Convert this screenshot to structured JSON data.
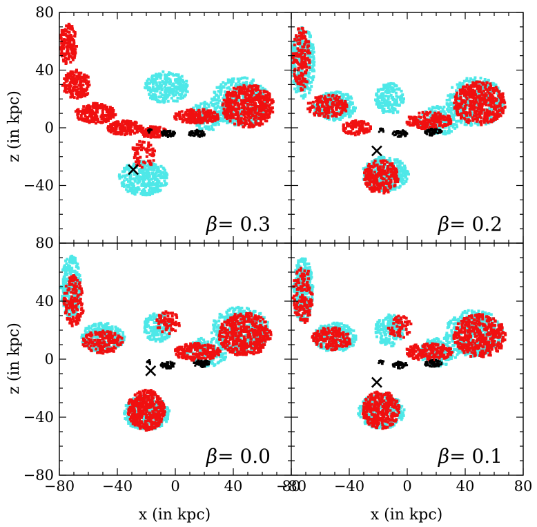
{
  "chart_data": {
    "type": "scatter",
    "layout": "2x2 shared axes",
    "xlabel": "x (in kpc)",
    "ylabel": "z (in kpc)",
    "xlim": [
      -80,
      80
    ],
    "ylim": [
      -80,
      80
    ],
    "x_ticks": [
      -80,
      -40,
      0,
      40,
      80
    ],
    "y_ticks": [
      -80,
      -40,
      0,
      40,
      80
    ],
    "colors": {
      "cyan": "#4ee8e8",
      "red": "#f01010",
      "black": "#000000"
    },
    "panels": [
      {
        "position": "top-left",
        "label_greek": "β",
        "label_rest": "=  0.3",
        "marker": {
          "symbol": "×",
          "x": -29,
          "y": -29
        },
        "series": [
          {
            "name": "cyan particles",
            "color": "cyan",
            "regions": [
              {
                "cx": -6,
                "cy": 28,
                "rx": 15,
                "ry": 11,
                "n": 260
              },
              {
                "cx": -22,
                "cy": -35,
                "rx": 17,
                "ry": 12,
                "n": 320
              },
              {
                "cx": 45,
                "cy": 18,
                "rx": 20,
                "ry": 17,
                "n": 380
              },
              {
                "cx": 22,
                "cy": 8,
                "rx": 12,
                "ry": 10,
                "n": 120
              }
            ]
          },
          {
            "name": "red particles",
            "color": "red",
            "regions": [
              {
                "cx": -74,
                "cy": 58,
                "rx": 6,
                "ry": 14,
                "n": 150
              },
              {
                "cx": -68,
                "cy": 30,
                "rx": 10,
                "ry": 10,
                "n": 180
              },
              {
                "cx": -55,
                "cy": 10,
                "rx": 14,
                "ry": 7,
                "n": 200
              },
              {
                "cx": -35,
                "cy": 0,
                "rx": 12,
                "ry": 5,
                "n": 160
              },
              {
                "cx": -15,
                "cy": -3,
                "rx": 10,
                "ry": 4,
                "n": 110
              },
              {
                "cx": 50,
                "cy": 15,
                "rx": 18,
                "ry": 15,
                "n": 450
              },
              {
                "cx": 15,
                "cy": 8,
                "rx": 16,
                "ry": 5,
                "n": 180
              },
              {
                "cx": -22,
                "cy": -18,
                "rx": 8,
                "ry": 10,
                "n": 70
              }
            ]
          },
          {
            "name": "black particles",
            "color": "black",
            "regions": [
              {
                "cx": -5,
                "cy": -4,
                "rx": 5,
                "ry": 2.5,
                "n": 60
              },
              {
                "cx": 15,
                "cy": -4,
                "rx": 6,
                "ry": 2.5,
                "n": 70
              },
              {
                "cx": -18,
                "cy": -2,
                "rx": 2,
                "ry": 1.5,
                "n": 10
              }
            ]
          }
        ]
      },
      {
        "position": "top-right",
        "label_greek": "β",
        "label_rest": "=  0.2",
        "marker": {
          "symbol": "×",
          "x": -21,
          "y": -16
        },
        "series": [
          {
            "name": "cyan particles",
            "color": "cyan",
            "regions": [
              {
                "cx": -72,
                "cy": 45,
                "rx": 8,
                "ry": 25,
                "n": 300
              },
              {
                "cx": -50,
                "cy": 15,
                "rx": 15,
                "ry": 10,
                "n": 260
              },
              {
                "cx": -12,
                "cy": 20,
                "rx": 10,
                "ry": 11,
                "n": 160
              },
              {
                "cx": -15,
                "cy": -32,
                "rx": 16,
                "ry": 12,
                "n": 300
              },
              {
                "cx": 47,
                "cy": 18,
                "rx": 20,
                "ry": 17,
                "n": 380
              },
              {
                "cx": 22,
                "cy": 5,
                "rx": 14,
                "ry": 10,
                "n": 140
              }
            ]
          },
          {
            "name": "red particles",
            "color": "red",
            "regions": [
              {
                "cx": -73,
                "cy": 48,
                "rx": 6,
                "ry": 22,
                "n": 150
              },
              {
                "cx": -55,
                "cy": 15,
                "rx": 14,
                "ry": 8,
                "n": 160
              },
              {
                "cx": -35,
                "cy": 0,
                "rx": 10,
                "ry": 5,
                "n": 100
              },
              {
                "cx": -18,
                "cy": -34,
                "rx": 12,
                "ry": 12,
                "n": 240
              },
              {
                "cx": 50,
                "cy": 17,
                "rx": 18,
                "ry": 15,
                "n": 430
              },
              {
                "cx": 15,
                "cy": 5,
                "rx": 16,
                "ry": 6,
                "n": 180
              }
            ]
          },
          {
            "name": "black particles",
            "color": "black",
            "regions": [
              {
                "cx": -5,
                "cy": -4,
                "rx": 5,
                "ry": 2.5,
                "n": 60
              },
              {
                "cx": 18,
                "cy": -3,
                "rx": 6,
                "ry": 2.5,
                "n": 70
              },
              {
                "cx": -18,
                "cy": -2,
                "rx": 2,
                "ry": 1.5,
                "n": 10
              }
            ]
          }
        ]
      },
      {
        "position": "bottom-left",
        "label_greek": "β",
        "label_rest": "=  0.0",
        "marker": {
          "symbol": "×",
          "x": -17,
          "y": -8
        },
        "series": [
          {
            "name": "cyan particles",
            "color": "cyan",
            "regions": [
              {
                "cx": -72,
                "cy": 50,
                "rx": 7,
                "ry": 22,
                "n": 280
              },
              {
                "cx": -50,
                "cy": 15,
                "rx": 15,
                "ry": 10,
                "n": 260
              },
              {
                "cx": -12,
                "cy": 22,
                "rx": 10,
                "ry": 10,
                "n": 160
              },
              {
                "cx": -20,
                "cy": -37,
                "rx": 16,
                "ry": 12,
                "n": 300
              },
              {
                "cx": 45,
                "cy": 20,
                "rx": 20,
                "ry": 16,
                "n": 380
              },
              {
                "cx": 22,
                "cy": 5,
                "rx": 14,
                "ry": 10,
                "n": 140
              }
            ]
          },
          {
            "name": "red particles",
            "color": "red",
            "regions": [
              {
                "cx": -70,
                "cy": 40,
                "rx": 7,
                "ry": 18,
                "n": 150
              },
              {
                "cx": -50,
                "cy": 12,
                "rx": 14,
                "ry": 8,
                "n": 160
              },
              {
                "cx": -20,
                "cy": -35,
                "rx": 13,
                "ry": 14,
                "n": 380
              },
              {
                "cx": 48,
                "cy": 17,
                "rx": 18,
                "ry": 15,
                "n": 430
              },
              {
                "cx": 15,
                "cy": 5,
                "rx": 16,
                "ry": 6,
                "n": 180
              },
              {
                "cx": -5,
                "cy": 25,
                "rx": 8,
                "ry": 8,
                "n": 70
              }
            ]
          },
          {
            "name": "black particles",
            "color": "black",
            "regions": [
              {
                "cx": -5,
                "cy": -4,
                "rx": 5,
                "ry": 2.5,
                "n": 60
              },
              {
                "cx": 18,
                "cy": -3,
                "rx": 6,
                "ry": 2.5,
                "n": 70
              },
              {
                "cx": -18,
                "cy": -2,
                "rx": 2,
                "ry": 1.5,
                "n": 10
              }
            ]
          }
        ]
      },
      {
        "position": "bottom-right",
        "label_greek": "β",
        "label_rest": "=  0.1",
        "marker": {
          "symbol": "×",
          "x": -21,
          "y": -16
        },
        "series": [
          {
            "name": "cyan particles",
            "color": "cyan",
            "regions": [
              {
                "cx": -72,
                "cy": 48,
                "rx": 7,
                "ry": 22,
                "n": 290
              },
              {
                "cx": -50,
                "cy": 15,
                "rx": 15,
                "ry": 10,
                "n": 260
              },
              {
                "cx": -12,
                "cy": 20,
                "rx": 10,
                "ry": 11,
                "n": 160
              },
              {
                "cx": -18,
                "cy": -36,
                "rx": 16,
                "ry": 12,
                "n": 300
              },
              {
                "cx": 46,
                "cy": 18,
                "rx": 20,
                "ry": 16,
                "n": 380
              },
              {
                "cx": 22,
                "cy": 5,
                "rx": 14,
                "ry": 10,
                "n": 140
              }
            ]
          },
          {
            "name": "red particles",
            "color": "red",
            "regions": [
              {
                "cx": -72,
                "cy": 44,
                "rx": 7,
                "ry": 20,
                "n": 150
              },
              {
                "cx": -52,
                "cy": 14,
                "rx": 14,
                "ry": 8,
                "n": 160
              },
              {
                "cx": -18,
                "cy": -35,
                "rx": 13,
                "ry": 13,
                "n": 320
              },
              {
                "cx": 50,
                "cy": 16,
                "rx": 18,
                "ry": 15,
                "n": 430
              },
              {
                "cx": 15,
                "cy": 5,
                "rx": 16,
                "ry": 6,
                "n": 180
              },
              {
                "cx": -5,
                "cy": 22,
                "rx": 8,
                "ry": 8,
                "n": 60
              }
            ]
          },
          {
            "name": "black particles",
            "color": "black",
            "regions": [
              {
                "cx": -5,
                "cy": -4,
                "rx": 5,
                "ry": 2.5,
                "n": 60
              },
              {
                "cx": 18,
                "cy": -3,
                "rx": 6,
                "ry": 2.5,
                "n": 70
              },
              {
                "cx": -18,
                "cy": -2,
                "rx": 2,
                "ry": 1.5,
                "n": 10
              }
            ]
          }
        ]
      }
    ]
  }
}
